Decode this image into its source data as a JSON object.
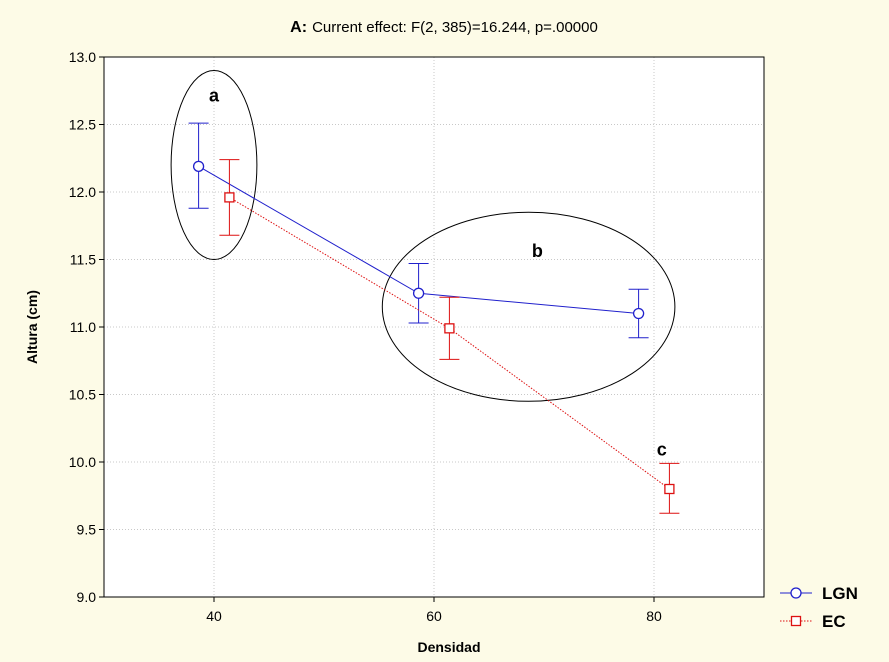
{
  "chart_data": {
    "type": "line",
    "title_prefix": "A:",
    "title": "Current effect: F(2, 385)=16.244, p=.00000",
    "xlabel": "Densidad",
    "ylabel": "Altura (cm)",
    "xlim": [
      30,
      90
    ],
    "ylim": [
      9.0,
      13.0
    ],
    "xticks": [
      40,
      60,
      80
    ],
    "yticks": [
      "9.0",
      "9.5",
      "10.0",
      "10.5",
      "11.0",
      "11.5",
      "12.0",
      "12.5",
      "13.0"
    ],
    "grid": true,
    "legend_position": "bottom-right",
    "series": [
      {
        "name": "LGN",
        "color": "#2020cc",
        "marker": "circle",
        "line_style": "solid",
        "points": [
          {
            "x": 38.6,
            "y": 12.19,
            "lower": 11.88,
            "upper": 12.51
          },
          {
            "x": 58.6,
            "y": 11.25,
            "lower": 11.03,
            "upper": 11.47
          },
          {
            "x": 78.6,
            "y": 11.1,
            "lower": 10.92,
            "upper": 11.28
          }
        ]
      },
      {
        "name": "EC",
        "color": "#dd1111",
        "marker": "square",
        "line_style": "dotted",
        "points": [
          {
            "x": 41.4,
            "y": 11.96,
            "lower": 11.68,
            "upper": 12.24
          },
          {
            "x": 61.4,
            "y": 10.99,
            "lower": 10.76,
            "upper": 11.22
          },
          {
            "x": 81.4,
            "y": 9.8,
            "lower": 9.62,
            "upper": 9.99
          }
        ]
      }
    ],
    "annotations": [
      {
        "text": "a",
        "x": 40.0,
        "y": 12.67
      },
      {
        "text": "b",
        "x": 69.4,
        "y": 11.52
      },
      {
        "text": "c",
        "x": 80.7,
        "y": 10.05
      }
    ],
    "group_ellipses": [
      {
        "label": "a",
        "cx": 40.0,
        "cy": 12.2,
        "rx": 3.9,
        "ry": 0.7
      },
      {
        "label": "b",
        "cx": 68.6,
        "cy": 11.15,
        "rx": 13.3,
        "ry": 0.7
      }
    ]
  }
}
